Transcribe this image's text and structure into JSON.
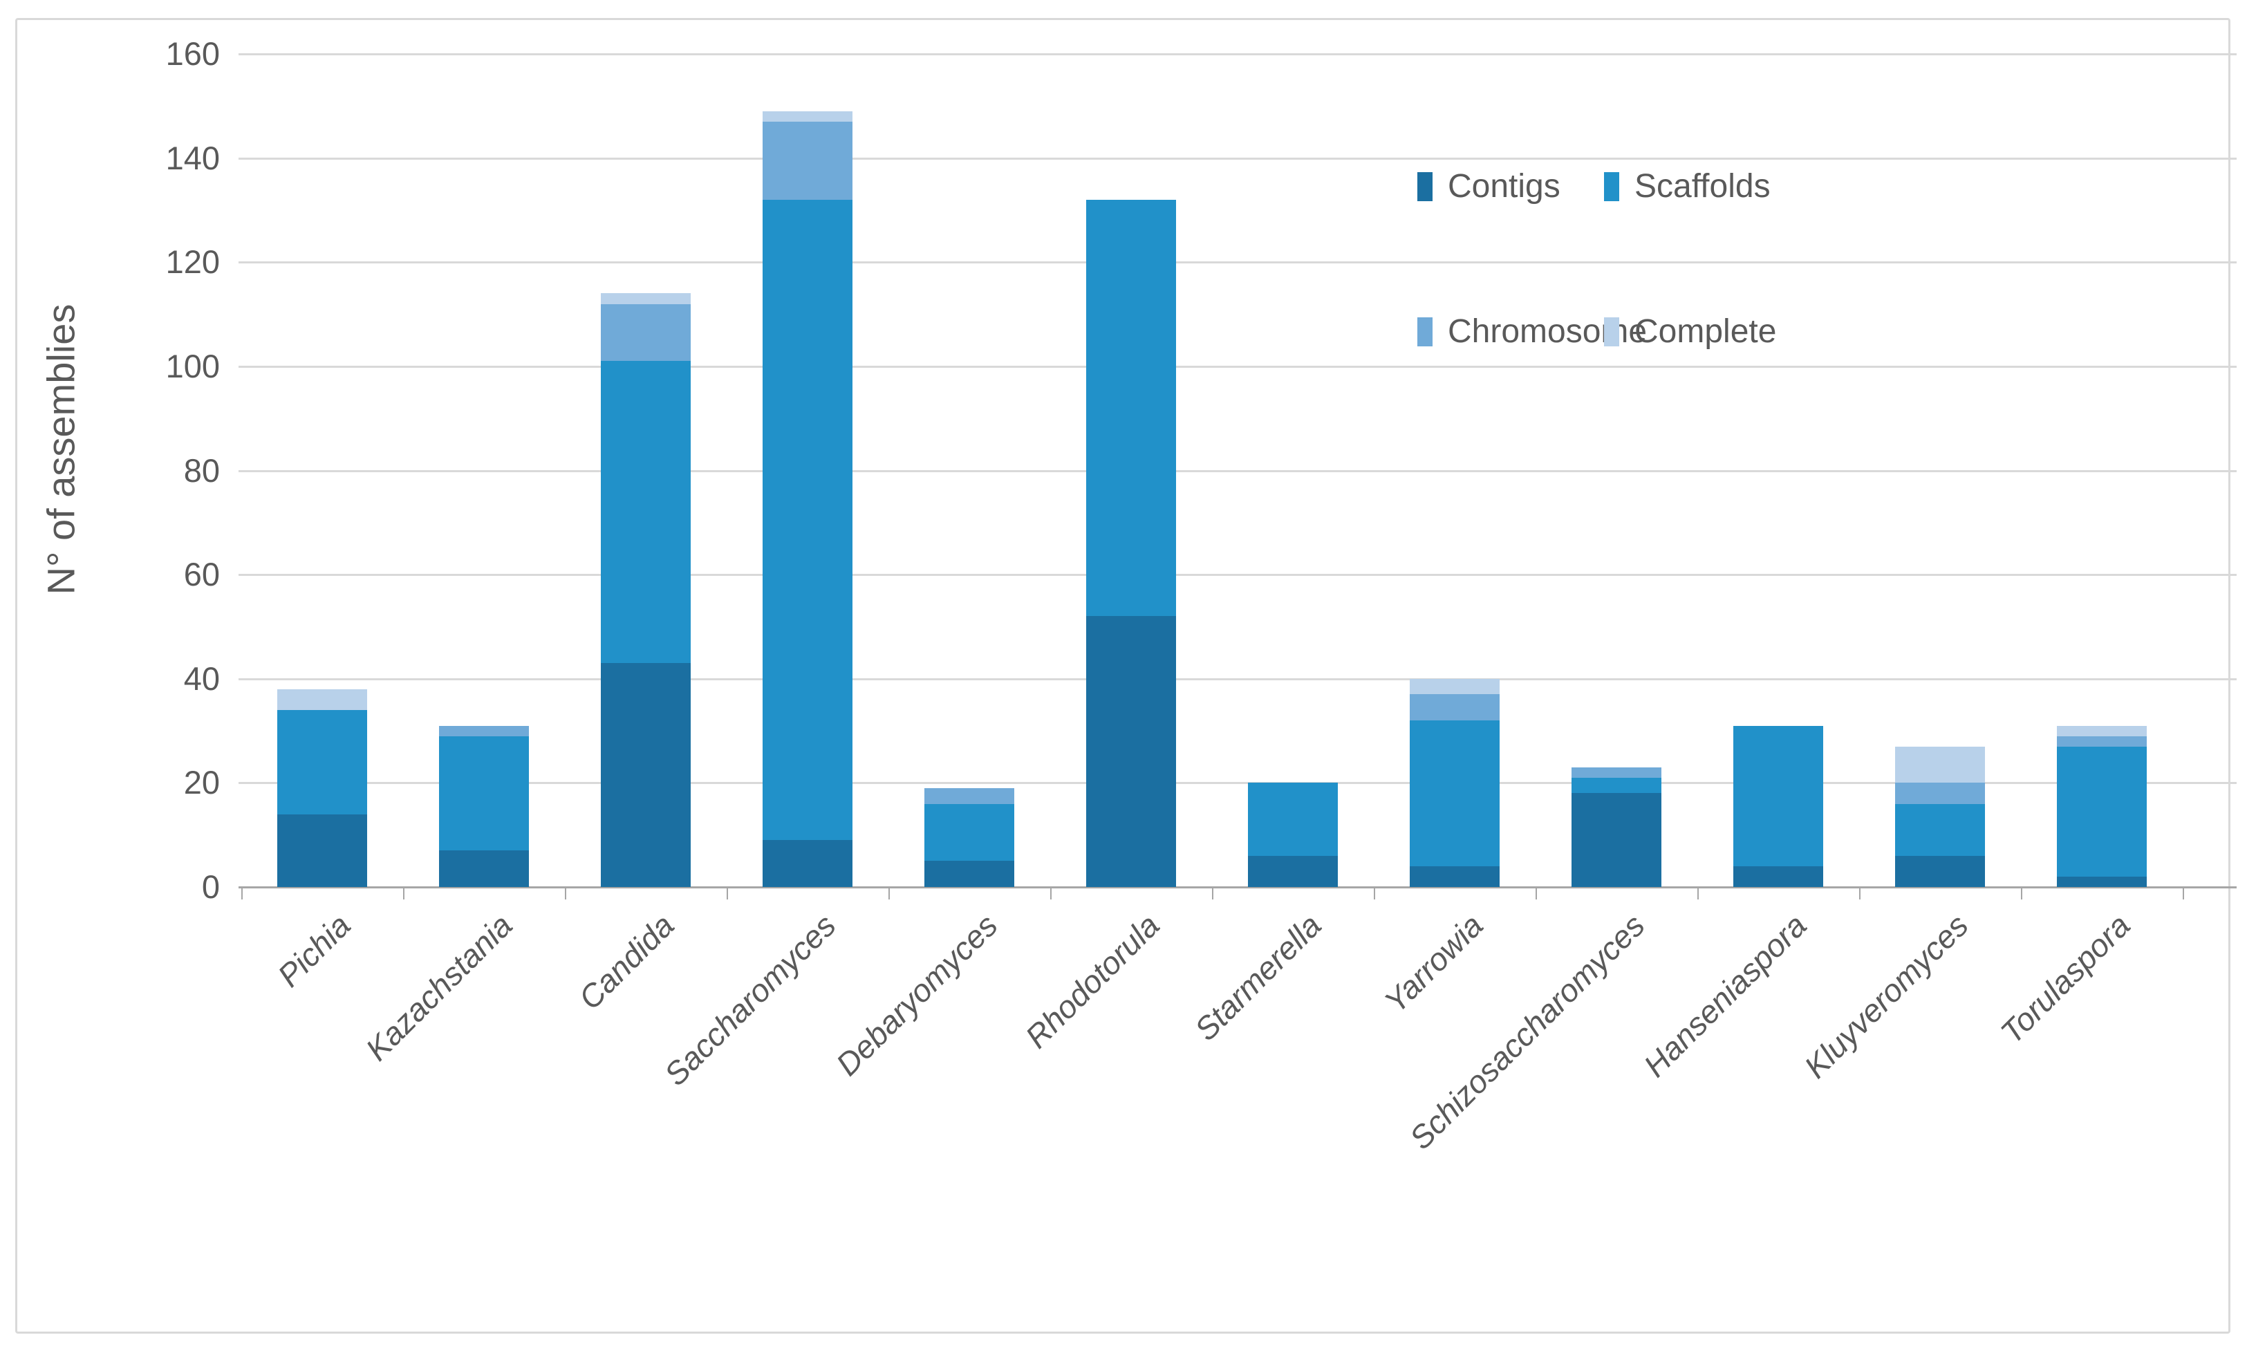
{
  "chart_data": {
    "type": "bar",
    "stacked": true,
    "title": "",
    "xlabel": "",
    "ylabel": "N° of assemblies",
    "ylim": [
      0,
      160
    ],
    "yticks": [
      0,
      20,
      40,
      60,
      80,
      100,
      120,
      140,
      160
    ],
    "grid": "horizontal gridlines on",
    "legend_position": "inside plot, upper right, 2 columns x 2 rows",
    "categories": [
      "Pichia",
      "Kazachstania",
      "Candida",
      "Saccharomyces",
      "Debaryomyces",
      "Rhodotorula",
      "Starmerella",
      "Yarrowia",
      "Schizosaccharomyces",
      "Hanseniaspora",
      "Kluyveromyces",
      "Torulaspora"
    ],
    "series": [
      {
        "name": "Contigs",
        "color": "#1b6fa1",
        "values": [
          14,
          7,
          43,
          9,
          5,
          52,
          6,
          4,
          18,
          4,
          6,
          2
        ]
      },
      {
        "name": "Scaffolds",
        "color": "#2191c9",
        "values": [
          20,
          22,
          58,
          123,
          11,
          80,
          14,
          28,
          3,
          27,
          10,
          25
        ]
      },
      {
        "name": "Chromosome",
        "color": "#70aad8",
        "values": [
          0,
          2,
          11,
          15,
          3,
          0,
          0,
          5,
          2,
          0,
          4,
          2
        ]
      },
      {
        "name": "Complete",
        "color": "#b8d1ea",
        "values": [
          4,
          0,
          2,
          2,
          0,
          0,
          0,
          3,
          0,
          0,
          7,
          2
        ]
      }
    ],
    "totals": [
      38,
      31,
      114,
      149,
      19,
      132,
      20,
      40,
      23,
      31,
      27,
      31
    ]
  },
  "style": {
    "gridline_color": "#d9d9d9",
    "axis_line_color": "#a6a6a6",
    "text_color": "#595959",
    "frame_border_color": "#d9d9d9",
    "background_color": "#ffffff"
  }
}
